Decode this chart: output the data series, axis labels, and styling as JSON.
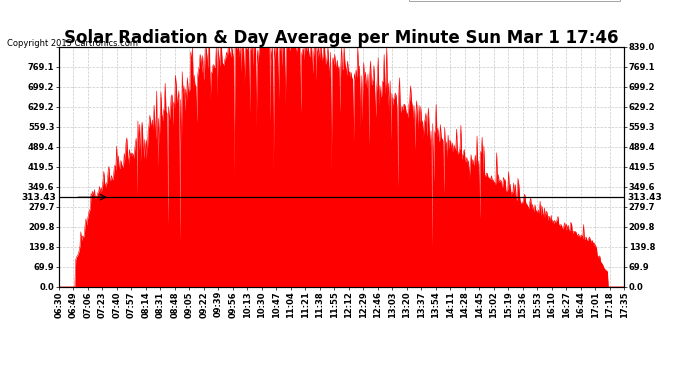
{
  "title": "Solar Radiation & Day Average per Minute Sun Mar 1 17:46",
  "copyright": "Copyright 2015 Cartronics.com",
  "median_value": 313.43,
  "y_max": 839.0,
  "y_min": 0.0,
  "y_ticks": [
    0.0,
    69.9,
    139.8,
    209.8,
    279.7,
    349.6,
    419.5,
    489.4,
    559.3,
    629.2,
    699.2,
    769.1,
    839.0
  ],
  "radiation_color": "#FF0000",
  "median_line_color": "#000000",
  "background_color": "#FFFFFF",
  "plot_bg_color": "#FFFFFF",
  "grid_color": "#BBBBBB",
  "legend_median_bg": "#0000CC",
  "legend_radiation_bg": "#FF0000",
  "x_tick_labels": [
    "06:30",
    "06:49",
    "07:06",
    "07:23",
    "07:40",
    "07:57",
    "08:14",
    "08:31",
    "08:48",
    "09:05",
    "09:22",
    "09:39",
    "09:56",
    "10:13",
    "10:30",
    "10:47",
    "11:04",
    "11:21",
    "11:38",
    "11:55",
    "12:12",
    "12:29",
    "12:46",
    "13:03",
    "13:20",
    "13:37",
    "13:54",
    "14:11",
    "14:28",
    "14:45",
    "15:02",
    "15:19",
    "15:36",
    "15:53",
    "16:10",
    "16:27",
    "16:44",
    "17:01",
    "17:18",
    "17:35"
  ],
  "title_fontsize": 12,
  "tick_fontsize": 6.0,
  "copyright_fontsize": 6.0,
  "legend_fontsize": 7.0
}
